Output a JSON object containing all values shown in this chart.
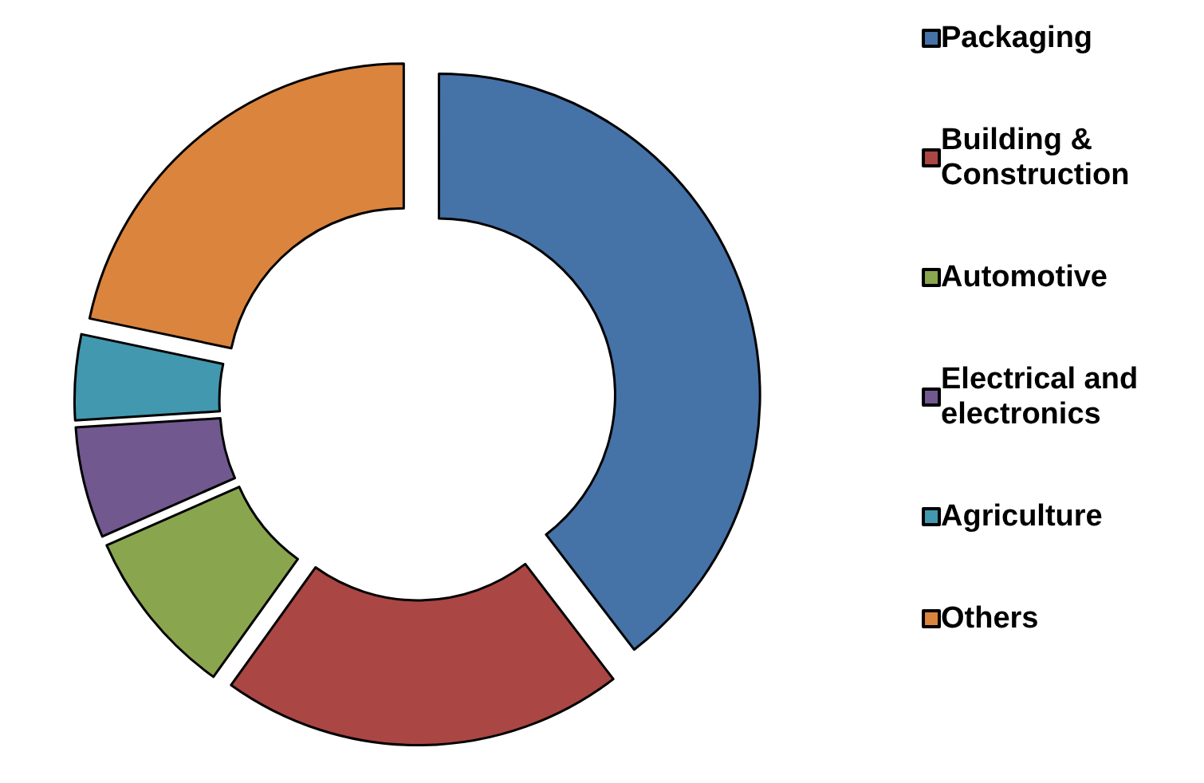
{
  "chart_data": {
    "type": "donut",
    "categories": [
      "Packaging",
      "Building & Construction",
      "Automotive",
      "Electrical and electronics",
      "Agriculture",
      "Others"
    ],
    "values": [
      39.6,
      20.3,
      8.5,
      5.6,
      4.3,
      21.7
    ],
    "colors": [
      "#4572a7",
      "#aa4643",
      "#89a54e",
      "#71588f",
      "#4198af",
      "#db843d"
    ],
    "legend": "right"
  }
}
